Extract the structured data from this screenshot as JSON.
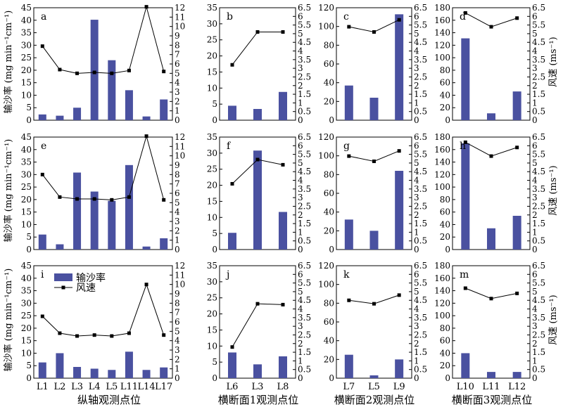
{
  "figure": {
    "left_ylabel": "输沙率 (mg min⁻¹cm⁻¹)",
    "right_ylabel": "风速 (ms⁻¹)",
    "xlabels": [
      "纵轴观测点位",
      "横断面1观测点位",
      "横断面2观测点位",
      "横断面3观测点位"
    ],
    "legend": {
      "bar": "输沙率",
      "line": "风速"
    },
    "colors": {
      "bar": "#4a51a0",
      "line": "#000000"
    }
  },
  "chart_data": [
    {
      "type": "bar",
      "panel": "a",
      "row": 0,
      "col": 0,
      "categories": [
        "L1",
        "L2",
        "L3",
        "L4",
        "L5",
        "L11",
        "L14",
        "L17"
      ],
      "series": [
        {
          "name": "输沙率",
          "axis": "left",
          "values": [
            2.3,
            1.8,
            5.0,
            40.2,
            24.0,
            12.0,
            1.5,
            8.3
          ]
        },
        {
          "name": "风速",
          "axis": "right",
          "values": [
            7.9,
            5.4,
            5.0,
            5.1,
            5.0,
            5.3,
            12.1,
            5.2
          ]
        }
      ],
      "ylim_left": [
        0,
        45
      ],
      "yticks_left": [
        0,
        5,
        10,
        15,
        20,
        25,
        30,
        35,
        40,
        45
      ],
      "ylim_right": [
        0,
        12
      ],
      "yticks_right": [
        0,
        1,
        2,
        3,
        4,
        5,
        6,
        7,
        8,
        9,
        10,
        11,
        12
      ]
    },
    {
      "type": "bar",
      "panel": "b",
      "row": 0,
      "col": 1,
      "categories": [
        "L6",
        "L3",
        "L8"
      ],
      "series": [
        {
          "name": "输沙率",
          "axis": "left",
          "values": [
            4.5,
            3.5,
            8.8
          ]
        },
        {
          "name": "风速",
          "axis": "right",
          "values": [
            3.2,
            5.1,
            5.1
          ]
        }
      ],
      "ylim_left": [
        0,
        35
      ],
      "yticks_left": [
        0,
        5,
        10,
        15,
        20,
        25,
        30,
        35
      ],
      "ylim_right": [
        0,
        6.5
      ],
      "yticks_right": [
        0,
        0.5,
        1,
        1.5,
        2,
        2.5,
        3,
        3.5,
        4,
        4.5,
        5,
        5.5,
        6,
        6.5
      ]
    },
    {
      "type": "bar",
      "panel": "c",
      "row": 0,
      "col": 2,
      "categories": [
        "L7",
        "L5",
        "L9"
      ],
      "series": [
        {
          "name": "输沙率",
          "axis": "left",
          "values": [
            37,
            24,
            113
          ]
        },
        {
          "name": "风速",
          "axis": "right",
          "values": [
            5.4,
            5.1,
            5.8
          ]
        }
      ],
      "ylim_left": [
        0,
        120
      ],
      "yticks_left": [
        0,
        20,
        40,
        60,
        80,
        100,
        120
      ],
      "ylim_right": [
        0,
        6.5
      ],
      "yticks_right": [
        0,
        0.5,
        1,
        1.5,
        2,
        2.5,
        3,
        3.5,
        4,
        4.5,
        5,
        5.5,
        6,
        6.5
      ]
    },
    {
      "type": "bar",
      "panel": "d",
      "row": 0,
      "col": 3,
      "categories": [
        "L10",
        "L11",
        "L12"
      ],
      "series": [
        {
          "name": "输沙率",
          "axis": "left",
          "values": [
            131,
            11,
            46
          ]
        },
        {
          "name": "风速",
          "axis": "right",
          "values": [
            6.2,
            5.4,
            5.9
          ]
        }
      ],
      "ylim_left": [
        0,
        180
      ],
      "yticks_left": [
        0,
        20,
        40,
        60,
        80,
        100,
        120,
        140,
        160,
        180
      ],
      "ylim_right": [
        0,
        6.5
      ],
      "yticks_right": [
        0,
        0.5,
        1,
        1.5,
        2,
        2.5,
        3,
        3.5,
        4,
        4.5,
        5,
        5.5,
        6,
        6.5
      ]
    },
    {
      "type": "bar",
      "panel": "e",
      "row": 1,
      "col": 0,
      "categories": [
        "L1",
        "L2",
        "L3",
        "L4",
        "L5",
        "L11",
        "L14",
        "L17"
      ],
      "series": [
        {
          "name": "输沙率",
          "axis": "left",
          "values": [
            6.0,
            2.1,
            30.8,
            23.2,
            19.5,
            33.8,
            1.2,
            4.5
          ]
        },
        {
          "name": "风速",
          "axis": "right",
          "values": [
            8.0,
            5.6,
            5.4,
            5.4,
            5.3,
            5.6,
            12.1,
            5.3
          ]
        }
      ],
      "ylim_left": [
        0,
        45
      ],
      "yticks_left": [
        0,
        5,
        10,
        15,
        20,
        25,
        30,
        35,
        40,
        45
      ],
      "ylim_right": [
        0,
        12
      ],
      "yticks_right": [
        0,
        1,
        2,
        3,
        4,
        5,
        6,
        7,
        8,
        9,
        10,
        11,
        12
      ]
    },
    {
      "type": "bar",
      "panel": "f",
      "row": 1,
      "col": 1,
      "categories": [
        "L6",
        "L3",
        "L8"
      ],
      "series": [
        {
          "name": "输沙率",
          "axis": "left",
          "values": [
            5.2,
            30.8,
            11.7
          ]
        },
        {
          "name": "风速",
          "axis": "right",
          "values": [
            3.8,
            5.2,
            4.9
          ]
        }
      ],
      "ylim_left": [
        0,
        35
      ],
      "yticks_left": [
        0,
        5,
        10,
        15,
        20,
        25,
        30,
        35
      ],
      "ylim_right": [
        0,
        6.5
      ],
      "yticks_right": [
        0,
        0.5,
        1,
        1.5,
        2,
        2.5,
        3,
        3.5,
        4,
        4.5,
        5,
        5.5,
        6,
        6.5
      ]
    },
    {
      "type": "bar",
      "panel": "g",
      "row": 1,
      "col": 2,
      "categories": [
        "L7",
        "L5",
        "L9"
      ],
      "series": [
        {
          "name": "输沙率",
          "axis": "left",
          "values": [
            32,
            20,
            84
          ]
        },
        {
          "name": "风速",
          "axis": "right",
          "values": [
            5.4,
            5.1,
            5.7
          ]
        }
      ],
      "ylim_left": [
        0,
        120
      ],
      "yticks_left": [
        0,
        20,
        40,
        60,
        80,
        100,
        120
      ],
      "ylim_right": [
        0,
        6.5
      ],
      "yticks_right": [
        0,
        0.5,
        1,
        1.5,
        2,
        2.5,
        3,
        3.5,
        4,
        4.5,
        5,
        5.5,
        6,
        6.5
      ]
    },
    {
      "type": "bar",
      "panel": "h",
      "row": 1,
      "col": 3,
      "categories": [
        "L10",
        "L11",
        "L12"
      ],
      "series": [
        {
          "name": "输沙率",
          "axis": "left",
          "values": [
            170,
            34,
            54
          ]
        },
        {
          "name": "风速",
          "axis": "right",
          "values": [
            6.2,
            5.4,
            5.9
          ]
        }
      ],
      "ylim_left": [
        0,
        180
      ],
      "yticks_left": [
        0,
        20,
        40,
        60,
        80,
        100,
        120,
        140,
        160,
        180
      ],
      "ylim_right": [
        0,
        6.5
      ],
      "yticks_right": [
        0,
        0.5,
        1,
        1.5,
        2,
        2.5,
        3,
        3.5,
        4,
        4.5,
        5,
        5.5,
        6,
        6.5
      ]
    },
    {
      "type": "bar",
      "panel": "i",
      "row": 2,
      "col": 0,
      "categories": [
        "L1",
        "L2",
        "L3",
        "L4",
        "L5",
        "L11",
        "L14",
        "L17"
      ],
      "series": [
        {
          "name": "输沙率",
          "axis": "left",
          "values": [
            6.3,
            10.0,
            4.5,
            3.8,
            3.3,
            10.6,
            3.3,
            4.3
          ]
        },
        {
          "name": "风速",
          "axis": "right",
          "values": [
            6.6,
            4.8,
            4.5,
            4.6,
            4.5,
            4.8,
            10.0,
            4.6
          ]
        }
      ],
      "ylim_left": [
        0,
        45
      ],
      "yticks_left": [
        0,
        5,
        10,
        15,
        20,
        25,
        30,
        35,
        40,
        45
      ],
      "ylim_right": [
        0,
        12
      ],
      "yticks_right": [
        0,
        1,
        2,
        3,
        4,
        5,
        6,
        7,
        8,
        9,
        10,
        11,
        12
      ]
    },
    {
      "type": "bar",
      "panel": "j",
      "row": 2,
      "col": 1,
      "categories": [
        "L6",
        "L3",
        "L8"
      ],
      "series": [
        {
          "name": "输沙率",
          "axis": "left",
          "values": [
            8.0,
            4.3,
            6.8
          ]
        },
        {
          "name": "风速",
          "axis": "right",
          "values": [
            1.8,
            4.3,
            4.25
          ]
        }
      ],
      "ylim_left": [
        0,
        35
      ],
      "yticks_left": [
        0,
        5,
        10,
        15,
        20,
        25,
        30,
        35
      ],
      "ylim_right": [
        0,
        6.5
      ],
      "yticks_right": [
        0,
        0.5,
        1,
        1.5,
        2,
        2.5,
        3,
        3.5,
        4,
        4.5,
        5,
        5.5,
        6,
        6.5
      ]
    },
    {
      "type": "bar",
      "panel": "k",
      "row": 2,
      "col": 2,
      "categories": [
        "L7",
        "L5",
        "L9"
      ],
      "series": [
        {
          "name": "输沙率",
          "axis": "left",
          "values": [
            25,
            3,
            20
          ]
        },
        {
          "name": "风速",
          "axis": "right",
          "values": [
            4.5,
            4.3,
            4.8
          ]
        }
      ],
      "ylim_left": [
        0,
        120
      ],
      "yticks_left": [
        0,
        20,
        40,
        60,
        80,
        100,
        120
      ],
      "ylim_right": [
        0,
        6.5
      ],
      "yticks_right": [
        0,
        0.5,
        1,
        1.5,
        2,
        2.5,
        3,
        3.5,
        4,
        4.5,
        5,
        5.5,
        6,
        6.5
      ]
    },
    {
      "type": "bar",
      "panel": "m",
      "row": 2,
      "col": 3,
      "categories": [
        "L10",
        "L11",
        "L12"
      ],
      "series": [
        {
          "name": "输沙率",
          "axis": "left",
          "values": [
            40,
            10,
            10
          ]
        },
        {
          "name": "风速",
          "axis": "right",
          "values": [
            5.2,
            4.6,
            4.9
          ]
        }
      ],
      "ylim_left": [
        0,
        180
      ],
      "yticks_left": [
        0,
        20,
        40,
        60,
        80,
        100,
        120,
        140,
        160,
        180
      ],
      "ylim_right": [
        0,
        6.5
      ],
      "yticks_right": [
        0,
        0.5,
        1,
        1.5,
        2,
        2.5,
        3,
        3.5,
        4,
        4.5,
        5,
        5.5,
        6,
        6.5
      ]
    }
  ]
}
